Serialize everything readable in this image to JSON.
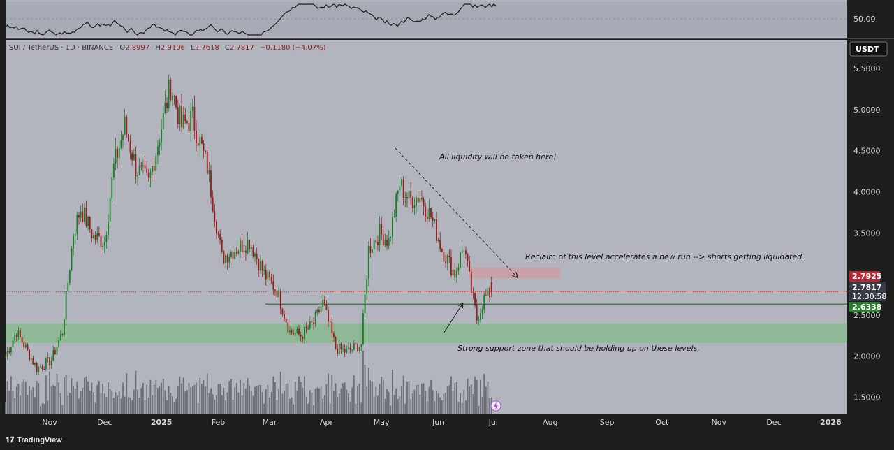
{
  "header": {
    "symbol": "SUI / TetherUS · 1D · BINANCE",
    "open_label": "O",
    "open": "2.8997",
    "high_label": "H",
    "high": "2.9106",
    "low_label": "L",
    "low": "2.7618",
    "close_label": "C",
    "close": "2.7817",
    "change": "−0.1180 (−4.07%)"
  },
  "oscillator": {
    "level_label": "50.00"
  },
  "currency_button": "USDT",
  "price_tags": {
    "resistance": "2.7925",
    "last": "2.7817",
    "countdown": "12:30:58",
    "support": "2.6338"
  },
  "annotations": {
    "liquidity": "All liquidity will be taken here!",
    "reclaim": "Reclaim of this level accelerates a new run --> shorts getting liquidated.",
    "support": "Strong support zone that should be holding up on these levels."
  },
  "brand": "TradingView",
  "colors": {
    "chart_bg": "#b2b5be",
    "up": "#1b7d2a",
    "down": "#9b1c1c",
    "support_zone": "#8fb996",
    "resistance_zone": "#c9a1a8",
    "tag_red": "#b22833",
    "tag_green": "#2e7d32",
    "tag_dark": "#363a45"
  },
  "chart_data": {
    "type": "candlestick",
    "y_axis": {
      "ticks": [
        1.5,
        2.0,
        2.5,
        3.0,
        3.5,
        4.0,
        4.5,
        5.0,
        5.5
      ],
      "range": [
        1.3,
        5.85
      ]
    },
    "x_axis": {
      "ticks": [
        "Nov",
        "Dec",
        "2025",
        "Feb",
        "Mar",
        "Apr",
        "May",
        "Jun",
        "Jul",
        "Aug",
        "Sep",
        "Oct",
        "Nov",
        "Dec",
        "2026"
      ],
      "range": [
        "2024-10-08",
        "2026-01-10"
      ]
    },
    "series": [
      {
        "ohlc_key_points": [
          {
            "date": "2024-10-08",
            "close": 2.0
          },
          {
            "date": "2024-10-14",
            "close": 2.3
          },
          {
            "date": "2024-10-25",
            "close": 1.85
          },
          {
            "date": "2024-11-02",
            "close": 1.95
          },
          {
            "date": "2024-11-08",
            "close": 2.3
          },
          {
            "date": "2024-11-14",
            "close": 3.5
          },
          {
            "date": "2024-11-18",
            "close": 3.8
          },
          {
            "date": "2024-11-25",
            "close": 3.45
          },
          {
            "date": "2024-12-01",
            "close": 3.4
          },
          {
            "date": "2024-12-06",
            "close": 4.3
          },
          {
            "date": "2024-12-12",
            "close": 4.8
          },
          {
            "date": "2024-12-18",
            "close": 4.3
          },
          {
            "date": "2024-12-25",
            "close": 4.1
          },
          {
            "date": "2025-01-04",
            "close": 5.1
          },
          {
            "date": "2025-01-06",
            "close": 5.3
          },
          {
            "date": "2025-01-12",
            "close": 4.8
          },
          {
            "date": "2025-01-18",
            "close": 4.9
          },
          {
            "date": "2025-01-26",
            "close": 4.3
          },
          {
            "date": "2025-02-03",
            "close": 3.2
          },
          {
            "date": "2025-02-10",
            "close": 3.3
          },
          {
            "date": "2025-02-18",
            "close": 3.4
          },
          {
            "date": "2025-02-26",
            "close": 3.0
          },
          {
            "date": "2025-03-05",
            "close": 2.8
          },
          {
            "date": "2025-03-12",
            "close": 2.3
          },
          {
            "date": "2025-03-18",
            "close": 2.25
          },
          {
            "date": "2025-03-25",
            "close": 2.4
          },
          {
            "date": "2025-03-30",
            "close": 2.65
          },
          {
            "date": "2025-04-06",
            "close": 2.1
          },
          {
            "date": "2025-04-12",
            "close": 2.05
          },
          {
            "date": "2025-04-20",
            "close": 2.15
          },
          {
            "date": "2025-04-24",
            "close": 3.3
          },
          {
            "date": "2025-04-30",
            "close": 3.5
          },
          {
            "date": "2025-05-05",
            "close": 3.4
          },
          {
            "date": "2025-05-11",
            "close": 4.1
          },
          {
            "date": "2025-05-16",
            "close": 3.9
          },
          {
            "date": "2025-05-22",
            "close": 3.95
          },
          {
            "date": "2025-05-28",
            "close": 3.7
          },
          {
            "date": "2025-06-03",
            "close": 3.3
          },
          {
            "date": "2025-06-10",
            "close": 3.0
          },
          {
            "date": "2025-06-15",
            "close": 3.35
          },
          {
            "date": "2025-06-19",
            "close": 2.8
          },
          {
            "date": "2025-06-22",
            "close": 2.45
          },
          {
            "date": "2025-06-26",
            "close": 2.7
          },
          {
            "date": "2025-06-30",
            "close": 2.7817
          }
        ]
      }
    ],
    "zones": {
      "support": [
        2.16,
        2.4
      ],
      "resistance": [
        2.95,
        3.08
      ]
    },
    "levels": [
      2.7925,
      2.6338
    ]
  }
}
